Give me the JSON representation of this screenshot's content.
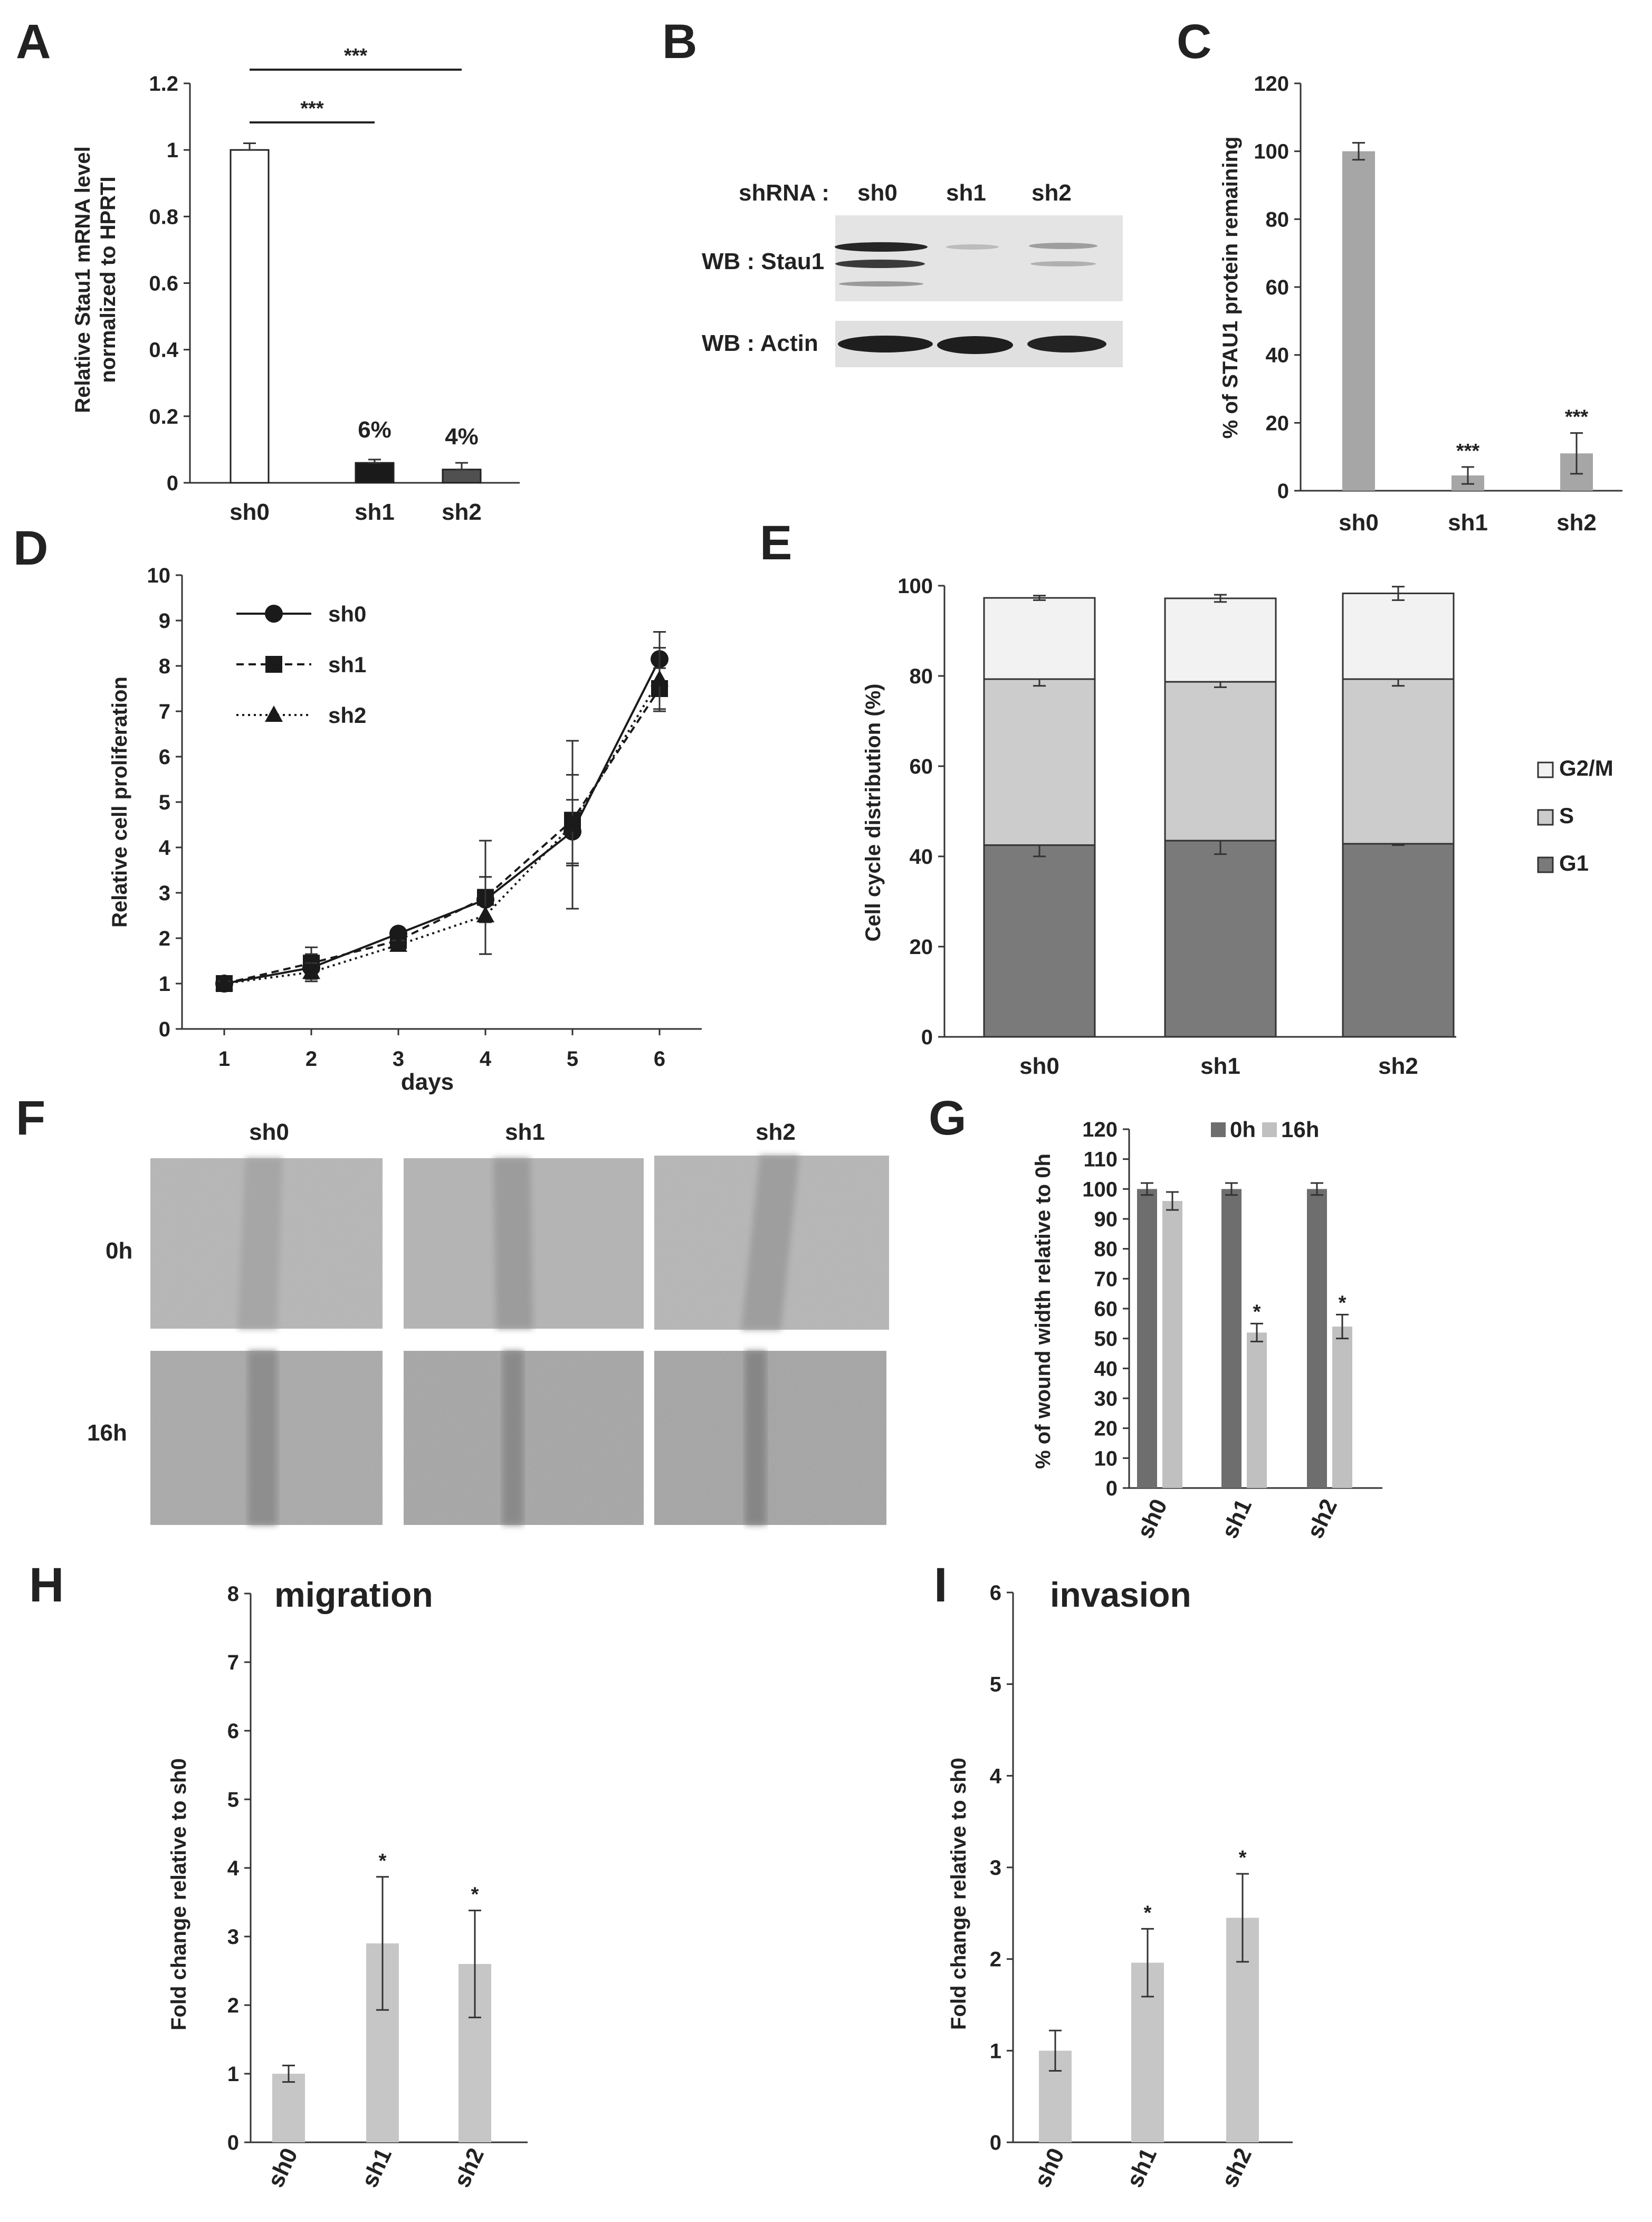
{
  "panels": {
    "A": {
      "letter": "A"
    },
    "B": {
      "letter": "B",
      "shrna_label": "shRNA :",
      "lanes": [
        "sh0",
        "sh1",
        "sh2"
      ],
      "row1": "WB : Stau1",
      "row2": "WB : Actin"
    },
    "C": {
      "letter": "C"
    },
    "D": {
      "letter": "D"
    },
    "E": {
      "letter": "E"
    },
    "F": {
      "letter": "F",
      "columns": [
        "sh0",
        "sh1",
        "sh2"
      ],
      "rows": [
        "0h",
        "16h"
      ]
    },
    "G": {
      "letter": "G"
    },
    "H": {
      "letter": "H"
    },
    "I": {
      "letter": "I"
    }
  },
  "colors": {
    "A_sh0": "#ffffff",
    "A_sh1": "#1a1a1a",
    "A_sh2": "#505050",
    "C_bar": "#a6a6a6",
    "G1": "#7a7a7a",
    "S": "#cccccc",
    "G2M": "#f2f2f2",
    "G_0h": "#6e6e6e",
    "G_16h": "#c0c0c0",
    "HI_bar": "#c6c6c6"
  },
  "chart_data": [
    {
      "id": "A",
      "type": "bar",
      "categories": [
        "sh0",
        "sh1",
        "sh2"
      ],
      "values": [
        1.0,
        0.06,
        0.04
      ],
      "errors": [
        0.02,
        0.01,
        0.02
      ],
      "bar_labels": [
        "",
        "6%",
        "4%"
      ],
      "ylabel": "Relative Stau1 mRNA level normalized to HPRTI",
      "ylabel_lines": [
        "Relative Stau1 mRNA level",
        "normalized to HPRTI"
      ],
      "ylim": [
        0,
        1.2
      ],
      "yticks": [
        "0",
        "0.2",
        "0.4",
        "0.6",
        "0.8",
        "1",
        "1.2"
      ],
      "significance": [
        {
          "from": "sh0",
          "to": "sh1",
          "label": "***"
        },
        {
          "from": "sh0",
          "to": "sh2",
          "label": "***"
        }
      ]
    },
    {
      "id": "C",
      "type": "bar",
      "categories": [
        "sh0",
        "sh1",
        "sh2"
      ],
      "values": [
        100,
        4.5,
        11
      ],
      "errors": [
        2.5,
        2.5,
        6
      ],
      "stars": [
        "",
        "***",
        "***"
      ],
      "ylabel": "% of STAU1 protein remaining",
      "ylim": [
        0,
        120
      ],
      "yticks": [
        "0",
        "20",
        "40",
        "60",
        "80",
        "100",
        "120"
      ]
    },
    {
      "id": "D",
      "type": "line",
      "x": [
        1,
        2,
        3,
        4,
        5,
        6
      ],
      "series": [
        {
          "name": "sh0",
          "values": [
            1.0,
            1.35,
            2.1,
            2.85,
            4.35,
            8.15
          ],
          "errors": [
            0.05,
            0.3,
            0.1,
            0.5,
            0.7,
            0.6
          ],
          "marker": "circle",
          "dash": "solid"
        },
        {
          "name": "sh1",
          "values": [
            1.0,
            1.45,
            1.95,
            2.9,
            4.6,
            7.5
          ],
          "errors": [
            0.05,
            0.35,
            0.1,
            1.25,
            1.0,
            0.45
          ],
          "marker": "square",
          "dash": "dashed"
        },
        {
          "name": "sh2",
          "values": [
            1.0,
            1.25,
            1.85,
            2.5,
            4.5,
            7.7
          ],
          "errors": [
            0.05,
            0.2,
            0.1,
            0.85,
            1.85,
            0.7
          ],
          "marker": "triangle",
          "dash": "dotted"
        }
      ],
      "xlabel": "days",
      "ylabel": "Relative cell proliferation",
      "ylim": [
        0,
        10
      ],
      "yticks": [
        "0",
        "1",
        "2",
        "3",
        "4",
        "5",
        "6",
        "7",
        "8",
        "9",
        "10"
      ],
      "xticks": [
        "1",
        "2",
        "3",
        "4",
        "5",
        "6"
      ]
    },
    {
      "id": "E",
      "type": "bar",
      "stacked": true,
      "categories": [
        "sh0",
        "sh1",
        "sh2"
      ],
      "series": [
        {
          "name": "G1",
          "values": [
            42.5,
            43.5,
            42.8
          ],
          "errors": [
            2.5,
            3,
            0.3
          ]
        },
        {
          "name": "S",
          "values": [
            36.8,
            35.2,
            36.5
          ],
          "errors": [
            1.5,
            1.2,
            1.5
          ]
        },
        {
          "name": "G2/M",
          "values": [
            18.0,
            18.5,
            19.0
          ],
          "errors": [
            0.5,
            0.8,
            1.5
          ]
        }
      ],
      "legend": [
        "G2/M",
        "S",
        "G1"
      ],
      "legend_position": "right",
      "ylabel": "Cell cycle distribution (%)",
      "ylim": [
        0,
        100
      ],
      "yticks": [
        "0",
        "20",
        "40",
        "60",
        "80",
        "100"
      ]
    },
    {
      "id": "G",
      "type": "bar",
      "categories": [
        "sh0",
        "sh1",
        "sh2"
      ],
      "series": [
        {
          "name": "0h",
          "values": [
            100,
            100,
            100
          ],
          "errors": [
            2,
            2,
            2
          ]
        },
        {
          "name": "16h",
          "values": [
            96,
            52,
            54
          ],
          "errors": [
            3,
            3,
            4
          ],
          "stars": [
            "",
            "*",
            "*"
          ]
        }
      ],
      "legend_position": "top",
      "ylabel": "% of wound width relative to 0h",
      "ylim": [
        0,
        120
      ],
      "yticks": [
        "0",
        "10",
        "20",
        "30",
        "40",
        "50",
        "60",
        "70",
        "80",
        "90",
        "100",
        "110",
        "120"
      ]
    },
    {
      "id": "H",
      "type": "bar",
      "title": "migration",
      "categories": [
        "sh0",
        "sh1",
        "sh2"
      ],
      "values": [
        1.0,
        2.9,
        2.6
      ],
      "errors": [
        0.12,
        0.97,
        0.78
      ],
      "stars": [
        "",
        "*",
        "*"
      ],
      "ylabel": "Fold change relative to sh0",
      "ylim": [
        0,
        8
      ],
      "yticks": [
        "0",
        "1",
        "2",
        "3",
        "4",
        "5",
        "6",
        "7",
        "8"
      ]
    },
    {
      "id": "I",
      "type": "bar",
      "title": "invasion",
      "categories": [
        "sh0",
        "sh1",
        "sh2"
      ],
      "values": [
        1.0,
        1.96,
        2.45
      ],
      "errors": [
        0.22,
        0.37,
        0.48
      ],
      "stars": [
        "",
        "*",
        "*"
      ],
      "ylabel": "Fold change relative to sh0",
      "ylim": [
        0,
        6
      ],
      "yticks": [
        "0",
        "1",
        "2",
        "3",
        "4",
        "5",
        "6"
      ]
    }
  ]
}
